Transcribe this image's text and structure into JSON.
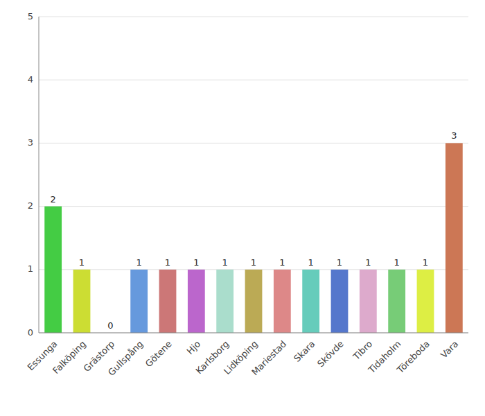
{
  "chart_data": {
    "type": "bar",
    "categories": [
      "Essunga",
      "Falköping",
      "Grästorp",
      "Gullspång",
      "Götene",
      "Hjo",
      "Karlsborg",
      "Lidköping",
      "Mariestad",
      "Skara",
      "Skövde",
      "Tibro",
      "Tidaholm",
      "Töreboda",
      "Vara"
    ],
    "values": [
      2,
      1,
      0,
      1,
      1,
      1,
      1,
      1,
      1,
      1,
      1,
      1,
      1,
      1,
      3
    ],
    "colors": [
      "#44cc44",
      "#ccdd33",
      "#ffffff",
      "#6699dd",
      "#cc7777",
      "#bb66cc",
      "#aaddcc",
      "#bbaa55",
      "#dd8888",
      "#66ccbb",
      "#5577cc",
      "#ddaacc",
      "#77cc77",
      "#ddee44",
      "#cc7755"
    ],
    "ylim": [
      0,
      5
    ],
    "yticks": [
      0,
      1,
      2,
      3,
      4,
      5
    ],
    "grid": true,
    "data_labels": true
  }
}
